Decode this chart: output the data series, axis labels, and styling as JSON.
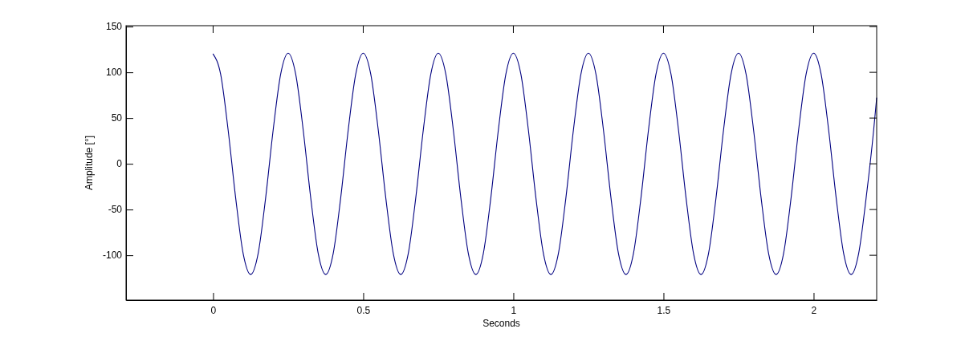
{
  "chart_data": {
    "type": "line",
    "xlabel": "Seconds",
    "ylabel": "Amplitude [°]",
    "xlim": [
      -0.29,
      2.21
    ],
    "xticks": [
      0,
      0.5,
      1,
      1.5,
      2
    ],
    "ylim": [
      -149,
      151
    ],
    "yticks": [
      -100,
      -50,
      0,
      50,
      100,
      150
    ],
    "x": [
      0,
      0.025,
      0.05,
      0.075,
      0.1,
      0.125,
      0.15,
      0.175,
      0.2,
      0.225,
      0.25,
      0.275,
      0.3,
      0.325,
      0.35,
      0.375,
      0.4,
      0.425,
      0.45,
      0.475,
      0.5,
      0.525,
      0.55,
      0.575,
      0.6,
      0.625,
      0.65,
      0.675,
      0.7,
      0.725,
      0.75,
      0.775,
      0.8,
      0.825,
      0.85,
      0.875,
      0.9,
      0.925,
      0.95,
      0.975,
      1,
      1.025,
      1.05,
      1.075,
      1.1,
      1.125,
      1.15,
      1.175,
      1.2,
      1.225,
      1.25,
      1.275,
      1.3,
      1.325,
      1.35,
      1.375,
      1.4,
      1.425,
      1.45,
      1.475,
      1.5,
      1.525,
      1.55,
      1.575,
      1.6,
      1.625,
      1.65,
      1.675,
      1.7,
      1.725,
      1.75,
      1.775,
      1.8,
      1.825,
      1.85,
      1.875,
      1.9,
      1.925,
      1.95,
      1.975,
      2,
      2.025,
      2.05,
      2.075,
      2.1,
      2.125,
      2.15,
      2.175,
      2.2,
      2.21
    ],
    "series": [
      {
        "color": "#000080",
        "values": [
          120,
          98,
          37,
          -37,
          -98,
          -121,
          -98,
          -37,
          37,
          98,
          121,
          98,
          37,
          -37,
          -98,
          -121,
          -98,
          -37,
          37,
          98,
          121,
          98,
          37,
          -37,
          -98,
          -121,
          -98,
          -37,
          37,
          98,
          121,
          98,
          37,
          -37,
          -98,
          -121,
          -98,
          -37,
          37,
          98,
          121,
          98,
          37,
          -37,
          -98,
          -121,
          -98,
          -37,
          37,
          98,
          121,
          98,
          37,
          -37,
          -98,
          -121,
          -98,
          -37,
          37,
          98,
          121,
          98,
          37,
          -37,
          -98,
          -121,
          -98,
          -37,
          37,
          98,
          121,
          98,
          37,
          -37,
          -98,
          -121,
          -98,
          -37,
          37,
          98,
          121,
          98,
          37,
          -37,
          -98,
          -121,
          -98,
          -37,
          37,
          72
        ]
      }
    ]
  }
}
